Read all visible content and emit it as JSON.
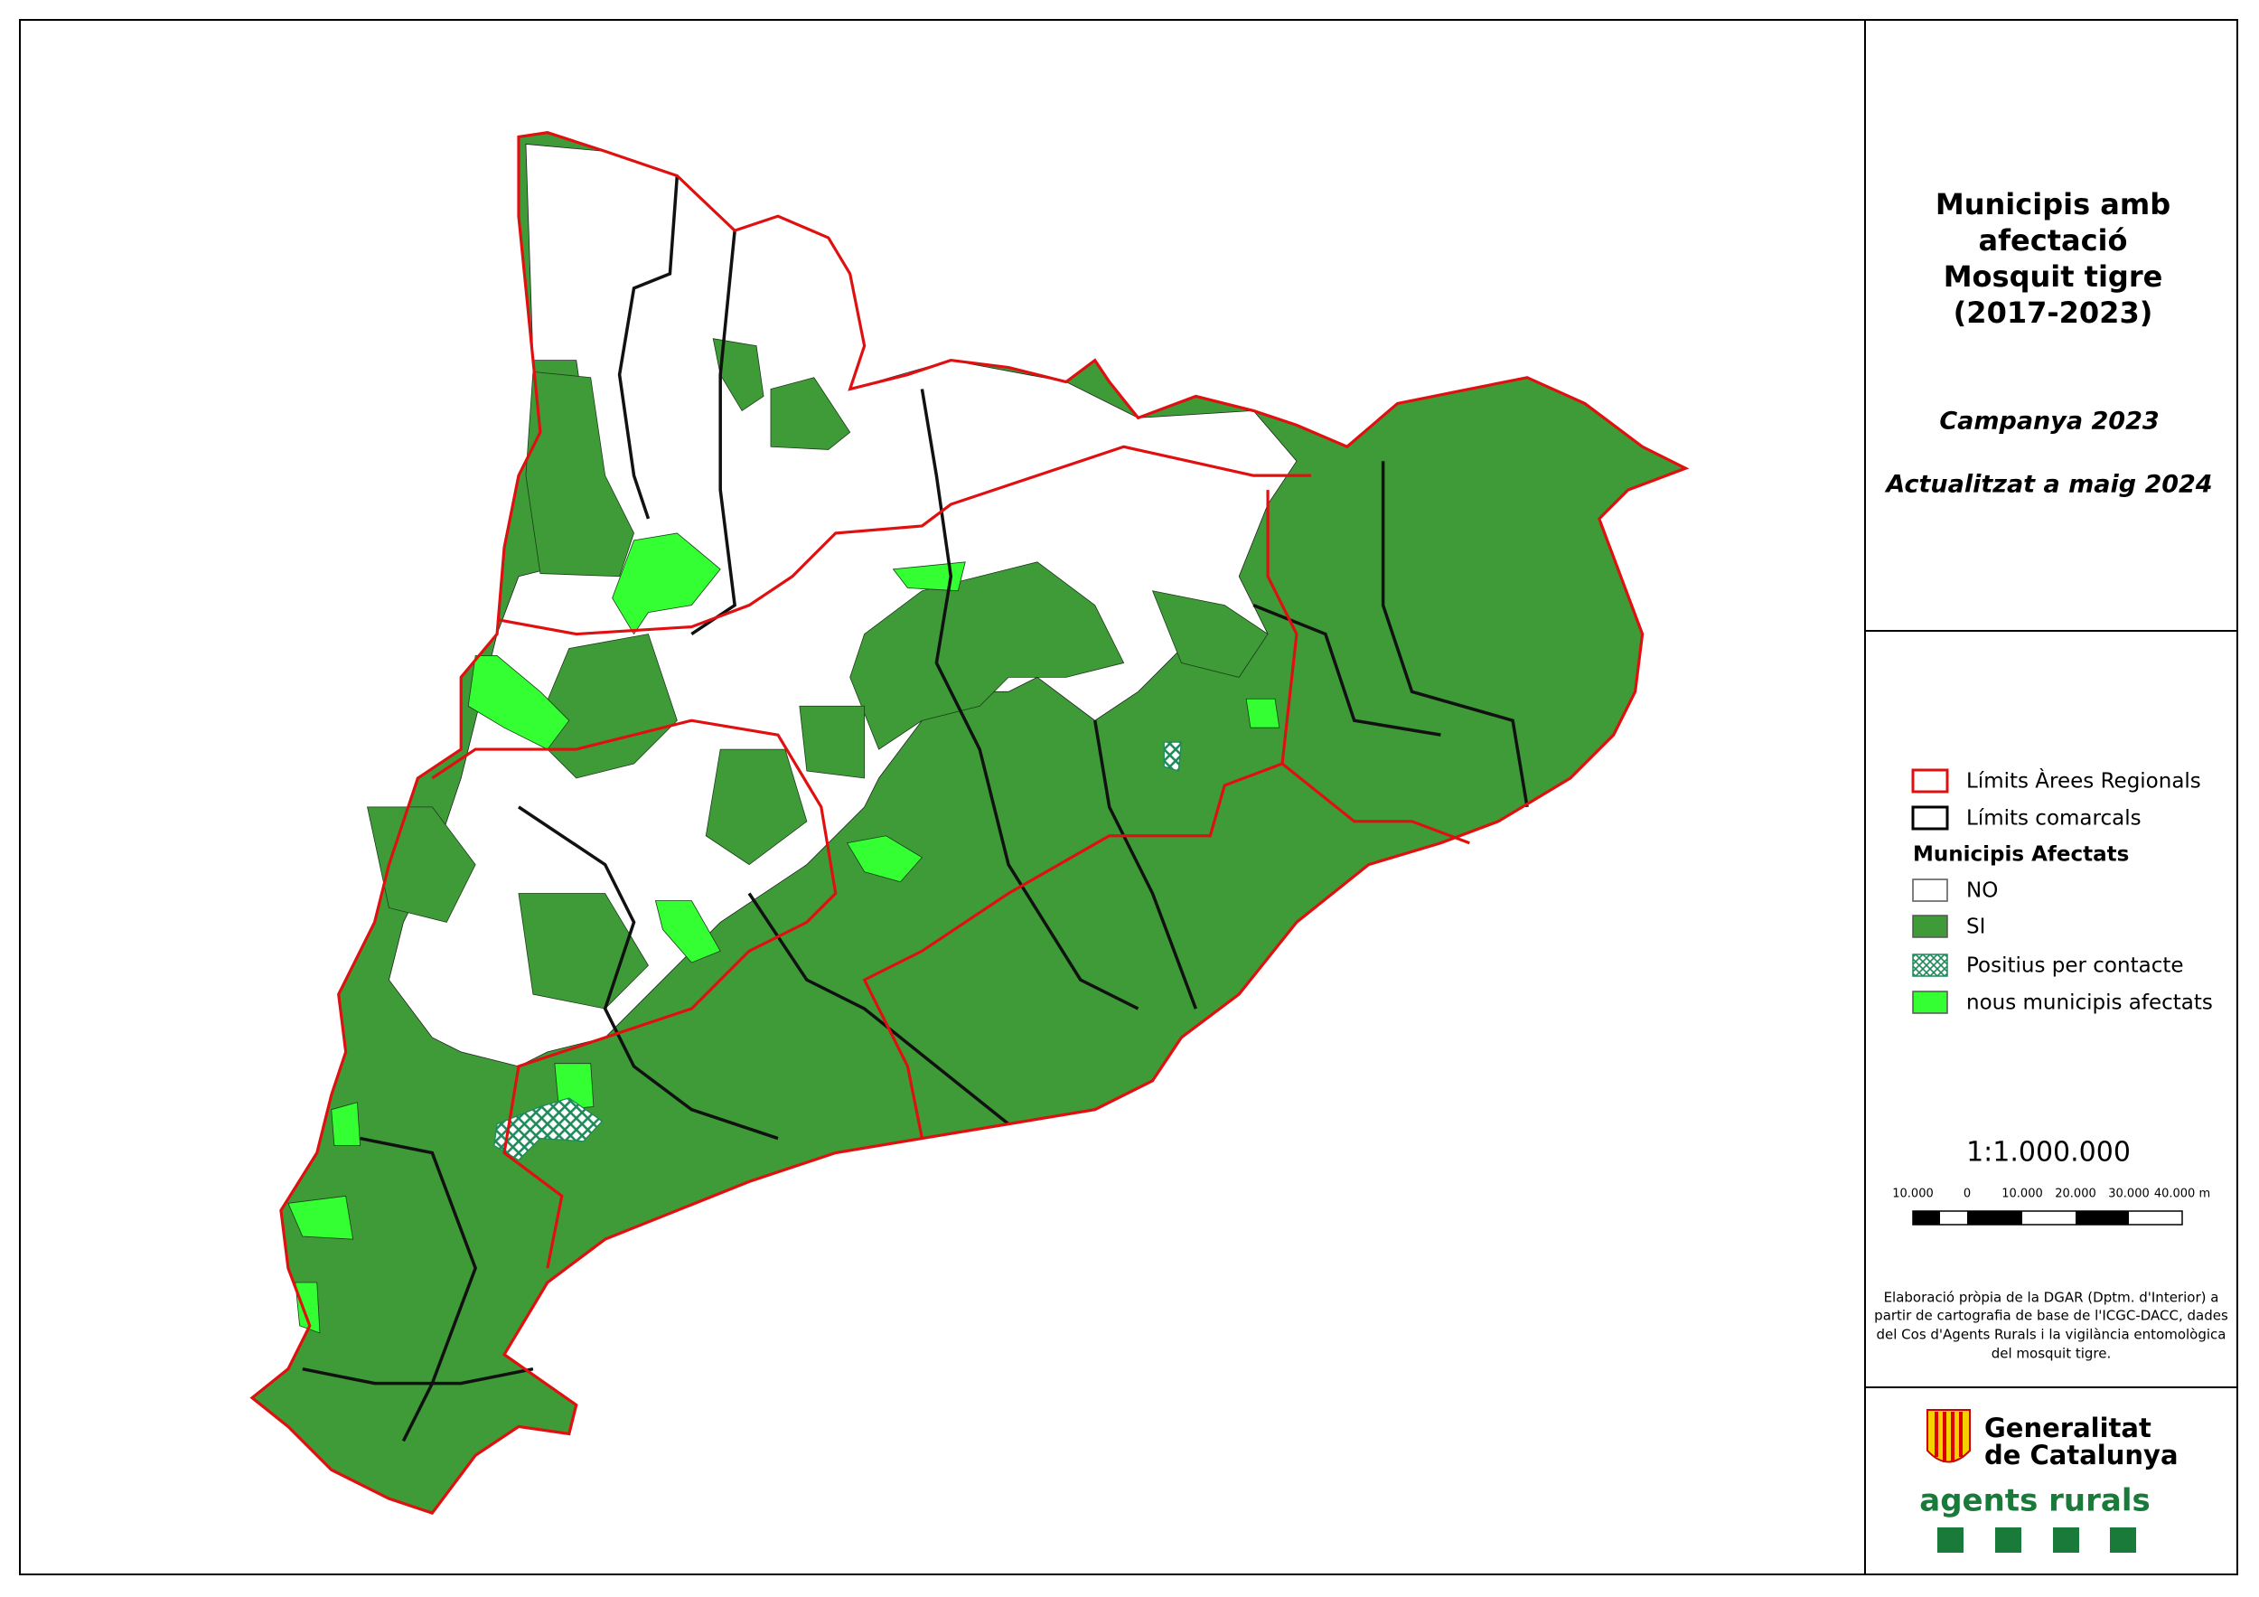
{
  "title": [
    "Municipis amb",
    "afectació",
    "Mosquit tigre",
    "(2017-2023)"
  ],
  "campaign": "Campanya 2023",
  "updated": "Actualitzat a maig 2024",
  "legend": {
    "boundaries": [
      "Límits Àrees Regionals",
      "Límits comarcals"
    ],
    "heading": "Municipis Afectats",
    "classes": [
      "NO",
      "SI",
      "Positius per contacte",
      "nous municipis afectats"
    ]
  },
  "scale": {
    "ratio": "1:1.000.000",
    "ticks": [
      "10.000",
      "0",
      "10.000",
      "20.000",
      "30.000",
      "40.000 m"
    ]
  },
  "credits": [
    "Elaboració pròpia de la DGAR (Dptm. d'Interior) a",
    "partir de cartografia de base de l'ICGC-DACC, dades",
    "del Cos d'Agents Rurals i la vigilància entomològica",
    "del mosquit tigre."
  ],
  "logo": {
    "name": [
      "Generalitat",
      "de Catalunya"
    ],
    "unit": "agents rurals"
  }
}
